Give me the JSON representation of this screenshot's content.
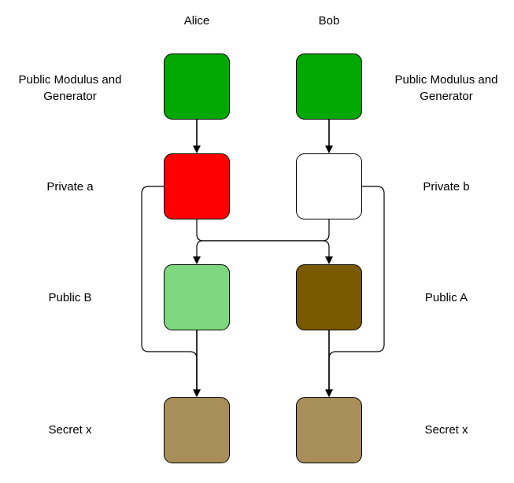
{
  "columns": {
    "alice": "Alice",
    "bob": "Bob"
  },
  "rows": {
    "public_modulus": [
      "Public Modulus and",
      "Generator"
    ],
    "private_left": "Private a",
    "private_right": "Private b",
    "public_left": "Public B",
    "public_right": "Public A",
    "secret": "Secret x"
  },
  "colors": {
    "public_modulus": "#00a800",
    "private_a": "#ff0000",
    "private_b": "#ffffff",
    "public_b": "#7fd77f",
    "public_a": "#7a5a00",
    "secret": "#a88f5a"
  }
}
